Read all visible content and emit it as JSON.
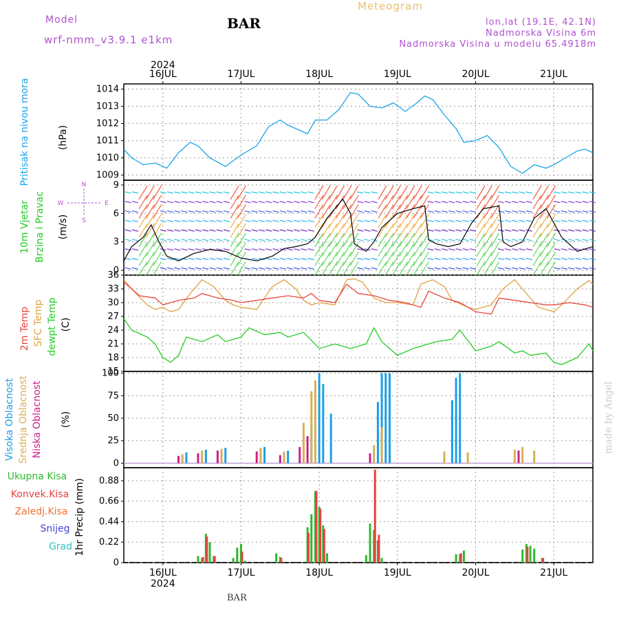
{
  "header": {
    "title": "BAR",
    "subtitle": "Meteogram",
    "model_label": "Model",
    "model_name": "wrf-nmm_v3.9.1 e1km",
    "coords": "lon,lat (19.1E, 42.1N)",
    "elevation": "Nadmorska Visina 6m",
    "model_elevation": "Nadmorska Visina u modelu 65.4918m",
    "watermark": "made by Angel",
    "footer": "BAR"
  },
  "colors": {
    "pressure": "#1aa3e8",
    "temp2m": "#e8443a",
    "sfc_temp": "#e0a040",
    "dewpt": "#22cc22",
    "cloud_high": "#1a9ee8",
    "cloud_mid": "#d9b050",
    "cloud_low": "#d01c8b",
    "precip_total": "#2eb82e",
    "precip_conv": "#e84040",
    "label_purple": "#b050d0",
    "subtitle": "#e8c070"
  },
  "axis": {
    "year": "2024",
    "dates": [
      "16JUL",
      "17JUL",
      "18JUL",
      "19JUL",
      "20JUL",
      "21JUL"
    ]
  },
  "chart_data": [
    {
      "type": "line",
      "panel": "pressure",
      "ylabel": [
        "Pritisak na nivou mora",
        "(hPa)"
      ],
      "yticks": [
        "1009",
        "1010",
        "1011",
        "1012",
        "1013",
        "1014"
      ],
      "ylim": [
        1008.7,
        1014.3
      ],
      "xlim_days": [
        15.5,
        21.5
      ],
      "series": [
        {
          "x": [
            15.5,
            15.6,
            15.75,
            15.9,
            16.05,
            16.2,
            16.35,
            16.45,
            16.6,
            16.8,
            16.95,
            17.05,
            17.2,
            17.35,
            17.5,
            17.6,
            17.75,
            17.85,
            17.95,
            18.1,
            18.25,
            18.4,
            18.5,
            18.65,
            18.8,
            18.95,
            19.1,
            19.25,
            19.35,
            19.45,
            19.6,
            19.75,
            19.85,
            20.0,
            20.15,
            20.3,
            20.45,
            20.6,
            20.75,
            20.9,
            21.0,
            21.15,
            21.3,
            21.4,
            21.5
          ],
          "y": [
            1010.5,
            1010.0,
            1009.6,
            1009.7,
            1009.4,
            1010.3,
            1010.9,
            1010.7,
            1010.0,
            1009.5,
            1010.0,
            1010.3,
            1010.7,
            1011.8,
            1012.2,
            1011.9,
            1011.6,
            1011.4,
            1012.2,
            1012.2,
            1012.8,
            1013.8,
            1013.7,
            1013.0,
            1012.9,
            1013.2,
            1012.7,
            1013.2,
            1013.6,
            1013.4,
            1012.5,
            1011.7,
            1010.9,
            1011.0,
            1011.3,
            1010.6,
            1009.5,
            1009.1,
            1009.6,
            1009.4,
            1009.6,
            1010.0,
            1010.4,
            1010.5,
            1010.3
          ]
        }
      ]
    },
    {
      "type": "line",
      "panel": "wind",
      "ylabel": [
        "10m Vjetar",
        "Brzina i Pravac",
        "(m/s)"
      ],
      "compass": [
        "N",
        "S",
        "W",
        "E"
      ],
      "yticks": [
        "0",
        "3",
        "6",
        "9"
      ],
      "ylim": [
        -0.5,
        9.5
      ],
      "xlim_days": [
        15.5,
        21.5
      ],
      "series": [
        {
          "name": "speed",
          "x": [
            15.5,
            15.6,
            15.75,
            15.85,
            15.95,
            16.05,
            16.2,
            16.4,
            16.6,
            16.8,
            17.0,
            17.2,
            17.4,
            17.55,
            17.7,
            17.85,
            17.95,
            18.1,
            18.3,
            18.4,
            18.45,
            18.6,
            18.7,
            18.8,
            19.0,
            19.2,
            19.35,
            19.4,
            19.5,
            19.65,
            19.8,
            19.95,
            20.1,
            20.3,
            20.35,
            20.45,
            20.6,
            20.75,
            20.9,
            21.1,
            21.3,
            21.5
          ],
          "y": [
            1.0,
            2.5,
            3.5,
            4.8,
            3.0,
            1.5,
            1.0,
            1.8,
            2.2,
            2.0,
            1.3,
            1.0,
            1.5,
            2.3,
            2.5,
            2.8,
            3.5,
            5.5,
            7.5,
            6.0,
            2.8,
            2.0,
            3.0,
            4.5,
            6.0,
            6.5,
            6.8,
            3.2,
            2.8,
            2.5,
            2.8,
            5.0,
            6.5,
            6.8,
            3.0,
            2.5,
            3.0,
            5.5,
            6.5,
            3.5,
            2.0,
            2.5
          ]
        }
      ]
    },
    {
      "type": "line",
      "panel": "temperature",
      "ylabel": [
        "2m Temp",
        "SFC Temp",
        "dewpt Temp",
        "(C)"
      ],
      "yticks": [
        "15",
        "18",
        "21",
        "24",
        "27",
        "30",
        "33",
        "36"
      ],
      "ylim": [
        15,
        36
      ],
      "xlim_days": [
        15.5,
        21.5
      ],
      "series": [
        {
          "name": "2m Temp",
          "x": [
            15.5,
            15.7,
            15.9,
            16.0,
            16.2,
            16.4,
            16.5,
            16.7,
            16.9,
            17.0,
            17.2,
            17.4,
            17.6,
            17.8,
            17.9,
            18.0,
            18.2,
            18.35,
            18.5,
            18.7,
            18.9,
            19.1,
            19.3,
            19.4,
            19.6,
            19.8,
            20.0,
            20.2,
            20.3,
            20.5,
            20.7,
            20.9,
            21.0,
            21.2,
            21.4,
            21.5
          ],
          "y": [
            34.5,
            31.5,
            31.0,
            29.5,
            30.5,
            31.0,
            32.0,
            31.0,
            30.5,
            30.0,
            30.5,
            31.0,
            31.5,
            31.0,
            32.0,
            30.5,
            30.0,
            34.0,
            32.0,
            31.5,
            30.5,
            30.0,
            29.0,
            32.5,
            31.0,
            30.0,
            28.0,
            27.5,
            31.0,
            30.5,
            30.0,
            29.5,
            29.5,
            30.0,
            29.5,
            29.0
          ]
        },
        {
          "name": "SFC Temp",
          "x": [
            15.5,
            15.6,
            15.8,
            15.9,
            16.0,
            16.1,
            16.2,
            16.35,
            16.5,
            16.65,
            16.8,
            16.9,
            17.0,
            17.2,
            17.4,
            17.55,
            17.7,
            17.8,
            17.9,
            18.0,
            18.2,
            18.35,
            18.45,
            18.55,
            18.7,
            18.85,
            19.0,
            19.2,
            19.3,
            19.45,
            19.6,
            19.7,
            19.9,
            20.0,
            20.2,
            20.35,
            20.5,
            20.6,
            20.8,
            20.9,
            21.0,
            21.1,
            21.3,
            21.45,
            21.5
          ],
          "y": [
            35.0,
            33.0,
            29.5,
            28.5,
            29.0,
            28.0,
            28.5,
            32.0,
            35.0,
            33.5,
            30.5,
            29.5,
            29.0,
            28.5,
            33.5,
            35.0,
            33.0,
            30.5,
            29.5,
            30.0,
            29.5,
            35.0,
            35.2,
            34.5,
            31.0,
            30.0,
            30.0,
            29.5,
            34.0,
            35.0,
            33.5,
            30.5,
            29.0,
            28.5,
            29.5,
            33.0,
            35.0,
            33.0,
            29.0,
            28.5,
            28.0,
            29.5,
            33.0,
            34.8,
            34.0
          ]
        },
        {
          "name": "dewpt Temp",
          "x": [
            15.5,
            15.6,
            15.8,
            15.9,
            16.0,
            16.1,
            16.2,
            16.3,
            16.5,
            16.7,
            16.8,
            17.0,
            17.1,
            17.3,
            17.5,
            17.6,
            17.8,
            18.0,
            18.2,
            18.4,
            18.6,
            18.7,
            18.8,
            19.0,
            19.2,
            19.4,
            19.5,
            19.7,
            19.8,
            20.0,
            20.2,
            20.3,
            20.5,
            20.6,
            20.7,
            20.9,
            21.0,
            21.1,
            21.3,
            21.45,
            21.5
          ],
          "y": [
            26.5,
            24.0,
            22.5,
            21.0,
            18.0,
            17.0,
            18.5,
            22.5,
            21.5,
            23.0,
            21.5,
            22.5,
            24.5,
            23.0,
            23.5,
            22.5,
            23.5,
            20.0,
            21.0,
            20.0,
            21.0,
            24.5,
            21.5,
            18.5,
            20.0,
            21.0,
            21.5,
            22.0,
            24.0,
            19.5,
            20.5,
            21.5,
            19.0,
            19.5,
            18.5,
            19.0,
            17.0,
            16.5,
            18.0,
            21.0,
            19.5
          ]
        }
      ]
    },
    {
      "type": "bar",
      "panel": "clouds",
      "ylabel": [
        "Visoka Oblacnost",
        "Srednja Oblacnost",
        "Niska Oblacnost",
        "(%)"
      ],
      "yticks": [
        "0",
        "25",
        "50",
        "75",
        "100"
      ],
      "ylim": [
        -5,
        102
      ],
      "xlim_days": [
        15.5,
        21.5
      ],
      "series": [
        {
          "name": "Visoka Oblacnost",
          "x": [
            16.3,
            16.55,
            16.8,
            17.3,
            17.6,
            17.9,
            18.0,
            18.05,
            18.15,
            18.75,
            18.8,
            18.85,
            18.9,
            19.7,
            19.75,
            19.8
          ],
          "y": [
            12,
            15,
            17,
            18,
            14,
            40,
            100,
            88,
            55,
            68,
            100,
            100,
            100,
            70,
            95,
            100
          ]
        },
        {
          "name": "Srednja Oblacnost",
          "x": [
            16.25,
            16.5,
            16.75,
            17.25,
            17.55,
            17.8,
            17.9,
            17.95,
            18.7,
            18.8,
            19.6,
            19.9,
            20.5,
            20.6,
            20.75
          ],
          "y": [
            10,
            14,
            16,
            17,
            13,
            45,
            80,
            92,
            20,
            40,
            13,
            12,
            15,
            18,
            14
          ]
        },
        {
          "name": "Niska Oblacnost",
          "x": [
            16.2,
            16.45,
            16.7,
            17.2,
            17.5,
            17.75,
            17.85,
            18.65,
            20.55
          ],
          "y": [
            8,
            11,
            14,
            13,
            9,
            18,
            30,
            11,
            14
          ]
        }
      ]
    },
    {
      "type": "bar",
      "panel": "precip",
      "ylabel": [
        "Ukupna Kisa",
        "Konvek.Kisa",
        "Zaledj.Kisa",
        "Snijeg",
        "Grad",
        "1hr Precip (mm)"
      ],
      "yticks": [
        "0",
        "0.22",
        "0.44",
        "0.66",
        "0.88"
      ],
      "ylim": [
        0,
        1.02
      ],
      "xlim_days": [
        15.5,
        21.5
      ],
      "series": [
        {
          "name": "Ukupna Kisa",
          "x": [
            16.45,
            16.5,
            16.55,
            16.6,
            16.65,
            16.9,
            16.95,
            17.0,
            17.05,
            17.45,
            17.5,
            17.85,
            17.9,
            17.95,
            18.0,
            18.05,
            18.1,
            18.6,
            18.65,
            18.7,
            18.75,
            18.8,
            19.75,
            19.8,
            19.85,
            20.6,
            20.65,
            20.7,
            20.75,
            20.85
          ],
          "y": [
            0.07,
            0.05,
            0.31,
            0.22,
            0.07,
            0.05,
            0.16,
            0.2,
            0.02,
            0.1,
            0.06,
            0.38,
            0.52,
            0.77,
            0.6,
            0.4,
            0.1,
            0.08,
            0.42,
            0.35,
            0.24,
            0.05,
            0.09,
            0.09,
            0.13,
            0.14,
            0.2,
            0.18,
            0.15,
            0.05
          ]
        },
        {
          "name": "Konvek.Kisa",
          "x": [
            16.5,
            16.55,
            16.65,
            17.0,
            17.5,
            17.85,
            17.95,
            18.0,
            18.05,
            18.7,
            18.75,
            19.8,
            20.65,
            20.85
          ],
          "y": [
            0.06,
            0.28,
            0.07,
            0.12,
            0.05,
            0.32,
            0.77,
            0.58,
            0.36,
            1.0,
            0.3,
            0.1,
            0.17,
            0.05
          ]
        }
      ]
    }
  ]
}
